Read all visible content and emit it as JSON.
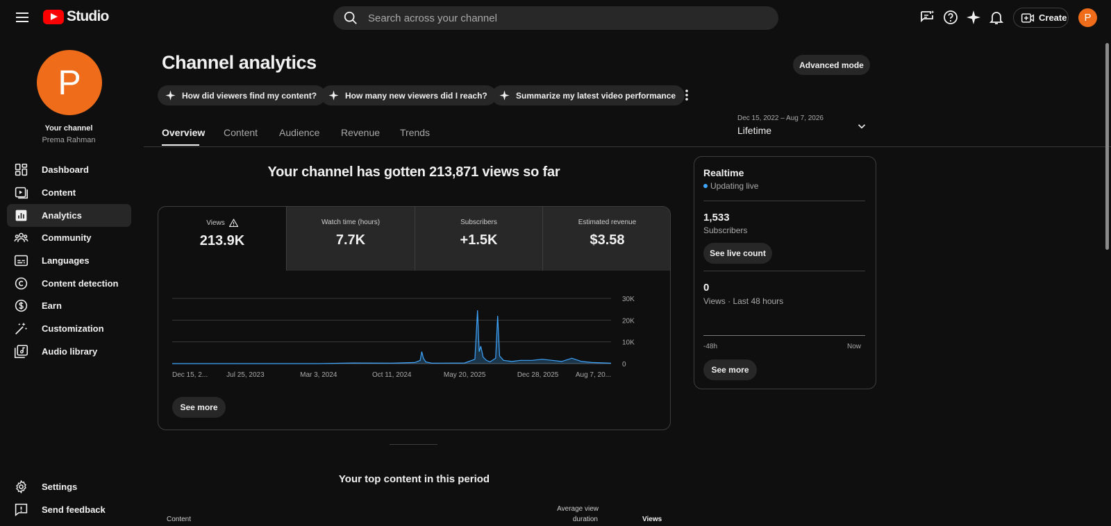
{
  "app": {
    "logo_text": "Studio",
    "brand_color": "#ff0000",
    "accent_color": "#3ea6ff",
    "avatar_color": "#ef6c1a"
  },
  "header": {
    "search_placeholder": "Search across your channel",
    "create_label": "Create",
    "avatar_letter": "P",
    "icons": [
      "menu-icon",
      "feedback-chat-icon",
      "help-icon",
      "sparkle-icon",
      "bell-icon",
      "create-video-icon"
    ]
  },
  "sidebar": {
    "avatar_letter": "P",
    "your_channel": "Your channel",
    "channel_name": "Prema Rahman",
    "items": [
      {
        "label": "Dashboard",
        "icon": "dashboard-icon"
      },
      {
        "label": "Content",
        "icon": "content-icon"
      },
      {
        "label": "Analytics",
        "icon": "analytics-icon",
        "active": true
      },
      {
        "label": "Community",
        "icon": "community-icon"
      },
      {
        "label": "Languages",
        "icon": "languages-icon"
      },
      {
        "label": "Content detection",
        "icon": "copyright-icon"
      },
      {
        "label": "Earn",
        "icon": "dollar-icon"
      },
      {
        "label": "Customization",
        "icon": "magic-wand-icon"
      },
      {
        "label": "Audio library",
        "icon": "audio-library-icon"
      }
    ],
    "bottom_items": [
      {
        "label": "Settings",
        "icon": "gear-icon"
      },
      {
        "label": "Send feedback",
        "icon": "feedback-icon"
      }
    ]
  },
  "page": {
    "title": "Channel analytics",
    "advanced_mode": "Advanced mode",
    "chips": [
      "How did viewers find my content?",
      "How many new viewers did I reach?",
      "Summarize my latest video performance"
    ],
    "tabs": [
      "Overview",
      "Content",
      "Audience",
      "Revenue",
      "Trends"
    ],
    "active_tab": "Overview",
    "date_range": "Dec 15, 2022 – Aug 7, 2026",
    "date_label": "Lifetime"
  },
  "overview": {
    "headline": "Your channel has gotten 213,871 views so far",
    "metrics": [
      {
        "label": "Views",
        "value": "213.9K",
        "warning": true,
        "active": true
      },
      {
        "label": "Watch time (hours)",
        "value": "7.7K"
      },
      {
        "label": "Subscribers",
        "value": "+1.5K"
      },
      {
        "label": "Estimated revenue",
        "value": "$3.58"
      }
    ],
    "see_more": "See more",
    "top_content_title": "Your top content in this period",
    "table_headers": {
      "content": "Content",
      "avg_duration_line1": "Average view",
      "avg_duration_line2": "duration",
      "views": "Views"
    }
  },
  "chart_data": {
    "type": "line",
    "series": [
      {
        "values": [
          {
            "date": "2022-12-15",
            "v": 0
          },
          {
            "date": "2023-07-25",
            "v": 0
          },
          {
            "date": "2024-03-03",
            "v": 0
          },
          {
            "date": "2024-06-15",
            "v": 300
          },
          {
            "date": "2024-10-11",
            "v": 200
          },
          {
            "date": "2024-12-20",
            "v": 500
          },
          {
            "date": "2025-01-05",
            "v": 1500
          },
          {
            "date": "2025-01-10",
            "v": 5500
          },
          {
            "date": "2025-01-15",
            "v": 2500
          },
          {
            "date": "2025-01-22",
            "v": 800
          },
          {
            "date": "2025-02-10",
            "v": 200
          },
          {
            "date": "2025-05-20",
            "v": 300
          },
          {
            "date": "2025-06-20",
            "v": 2000
          },
          {
            "date": "2025-06-28",
            "v": 24500
          },
          {
            "date": "2025-07-03",
            "v": 5500
          },
          {
            "date": "2025-07-08",
            "v": 8000
          },
          {
            "date": "2025-07-15",
            "v": 3000
          },
          {
            "date": "2025-07-25",
            "v": 1500
          },
          {
            "date": "2025-08-05",
            "v": 800
          },
          {
            "date": "2025-08-22",
            "v": 2500
          },
          {
            "date": "2025-08-28",
            "v": 22000
          },
          {
            "date": "2025-09-03",
            "v": 3500
          },
          {
            "date": "2025-09-15",
            "v": 1500
          },
          {
            "date": "2025-10-10",
            "v": 1000
          },
          {
            "date": "2025-11-05",
            "v": 1500
          },
          {
            "date": "2025-12-10",
            "v": 1500
          },
          {
            "date": "2026-01-10",
            "v": 2000
          },
          {
            "date": "2026-02-10",
            "v": 1500
          },
          {
            "date": "2026-03-10",
            "v": 1000
          },
          {
            "date": "2026-04-10",
            "v": 2500
          },
          {
            "date": "2026-05-10",
            "v": 1000
          },
          {
            "date": "2026-06-10",
            "v": 500
          },
          {
            "date": "2026-08-07",
            "v": 200
          }
        ]
      }
    ],
    "x_ticks": [
      "Dec 15, 2...",
      "Jul 25, 2023",
      "Mar 3, 2024",
      "Oct 11, 2024",
      "May 20, 2025",
      "Dec 28, 2025",
      "Aug 7, 20..."
    ],
    "y_ticks": [
      "30K",
      "20K",
      "10K",
      "0"
    ],
    "ylim": [
      0,
      30000
    ],
    "xlim": [
      "2022-12-15",
      "2026-08-07"
    ],
    "grid": true,
    "line_color": "#3ea6ff"
  },
  "realtime": {
    "title": "Realtime",
    "status": "Updating live",
    "subscribers": "1,533",
    "subscribers_label": "Subscribers",
    "see_live_count": "See live count",
    "views": "0",
    "views_label": "Views · Last 48 hours",
    "axis_start": "-48h",
    "axis_end": "Now",
    "see_more": "See more"
  }
}
